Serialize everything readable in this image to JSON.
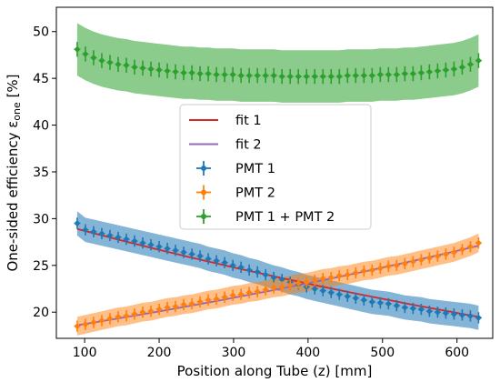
{
  "chart_data": {
    "type": "line",
    "xlabel": "Position along Tube (z) [mm]",
    "ylabel_main": "One-sided efficiency ε",
    "ylabel_sub": "one",
    "ylabel_unit": " [%]",
    "xlim": [
      62,
      648
    ],
    "ylim": [
      17.2,
      52.6
    ],
    "x_ticks": [
      100,
      200,
      300,
      400,
      500,
      600
    ],
    "y_ticks": [
      20,
      25,
      30,
      35,
      40,
      45,
      50
    ],
    "grid": false,
    "legend_position": "center",
    "colors": {
      "pmt1": "#1f77b4",
      "pmt2": "#ff7f0e",
      "sum": "#2ca02c",
      "fit1": "#d62728",
      "fit2": "#9467bd"
    },
    "z": [
      90,
      101,
      112,
      123,
      134,
      145,
      156,
      167,
      178,
      189,
      200,
      211,
      222,
      233,
      244,
      255,
      266,
      277,
      288,
      299,
      310,
      321,
      332,
      343,
      354,
      365,
      376,
      387,
      398,
      409,
      420,
      431,
      442,
      453,
      464,
      475,
      486,
      497,
      508,
      519,
      530,
      541,
      552,
      563,
      574,
      585,
      596,
      607,
      618,
      629
    ],
    "series": [
      {
        "name": "PMT 1",
        "values": [
          29.5,
          28.8,
          28.6,
          28.4,
          28.2,
          28.0,
          27.8,
          27.6,
          27.4,
          27.2,
          27.0,
          26.8,
          26.6,
          26.4,
          26.2,
          26.0,
          25.7,
          25.5,
          25.3,
          25.0,
          24.8,
          24.5,
          24.3,
          24.0,
          23.7,
          23.5,
          23.2,
          23.0,
          22.7,
          22.5,
          22.3,
          22.1,
          21.9,
          21.7,
          21.5,
          21.3,
          21.1,
          21.0,
          20.9,
          20.7,
          20.5,
          20.4,
          20.3,
          20.1,
          20.0,
          19.9,
          19.8,
          19.7,
          19.6,
          19.4
        ],
        "yerr": 0.6,
        "band": 1.3
      },
      {
        "name": "PMT 2",
        "values": [
          18.5,
          18.7,
          18.9,
          19.1,
          19.3,
          19.5,
          19.6,
          19.8,
          20.0,
          20.1,
          20.3,
          20.5,
          20.6,
          20.8,
          20.9,
          21.1,
          21.3,
          21.4,
          21.6,
          21.8,
          21.9,
          22.1,
          22.2,
          22.4,
          22.6,
          22.7,
          22.9,
          23.1,
          23.2,
          23.4,
          23.6,
          23.7,
          23.9,
          24.0,
          24.2,
          24.4,
          24.5,
          24.7,
          24.9,
          25.0,
          25.2,
          25.4,
          25.6,
          25.8,
          26.0,
          26.2,
          26.4,
          26.7,
          27.0,
          27.4
        ],
        "yerr": 0.6,
        "band": 1.0
      },
      {
        "name": "PMT 1 + PMT 2",
        "values": [
          48.1,
          47.6,
          47.2,
          46.9,
          46.7,
          46.5,
          46.4,
          46.2,
          46.1,
          46.0,
          45.9,
          45.8,
          45.7,
          45.6,
          45.6,
          45.5,
          45.5,
          45.4,
          45.4,
          45.4,
          45.3,
          45.3,
          45.3,
          45.3,
          45.3,
          45.2,
          45.2,
          45.2,
          45.2,
          45.2,
          45.2,
          45.2,
          45.2,
          45.3,
          45.3,
          45.3,
          45.3,
          45.4,
          45.4,
          45.4,
          45.5,
          45.5,
          45.6,
          45.7,
          45.8,
          45.9,
          46.0,
          46.2,
          46.5,
          46.9
        ],
        "yerr": 0.8,
        "band": 2.8
      }
    ],
    "fits": [
      {
        "name": "fit 1",
        "start": 28.9,
        "end": 19.5
      },
      {
        "name": "fit 2",
        "start": 18.6,
        "end": 27.1
      }
    ],
    "legend": [
      "fit 1",
      "fit 2",
      "PMT 1",
      "PMT 2",
      "PMT 1 + PMT 2"
    ]
  }
}
